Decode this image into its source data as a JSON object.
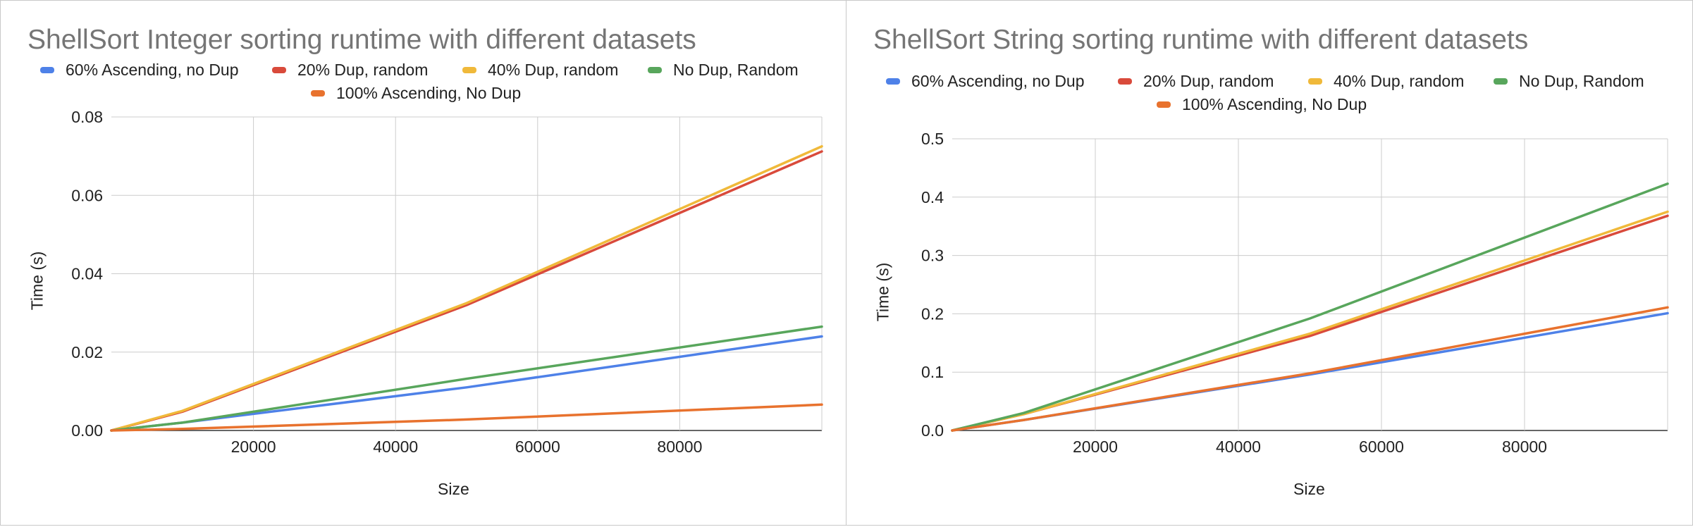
{
  "charts": [
    {
      "title": "ShellSort Integer sorting runtime with different datasets",
      "legend": [
        {
          "label": "60% Ascending, no Dup",
          "color": "#4e81e8"
        },
        {
          "label": "20% Dup, random",
          "color": "#d94a3b"
        },
        {
          "label": "40% Dup, random",
          "color": "#f0b93a"
        },
        {
          "label": "No Dup, Random",
          "color": "#58a65c"
        },
        {
          "label": "100% Ascending, No Dup",
          "color": "#e8722e"
        }
      ],
      "ylabel": "Time (s)",
      "xlabel": "Size"
    },
    {
      "title": "ShellSort String sorting runtime with different datasets",
      "legend": [
        {
          "label": "60% Ascending, no Dup",
          "color": "#4e81e8"
        },
        {
          "label": "20% Dup, random",
          "color": "#d94a3b"
        },
        {
          "label": "40% Dup, random",
          "color": "#f0b93a"
        },
        {
          "label": "No Dup, Random",
          "color": "#58a65c"
        },
        {
          "label": "100% Ascending, No Dup",
          "color": "#e8722e"
        }
      ],
      "ylabel": "Time (s)",
      "xlabel": "Size"
    }
  ],
  "chart_data": [
    {
      "type": "line",
      "title": "ShellSort Integer sorting runtime with different datasets",
      "xlabel": "Size",
      "ylabel": "Time (s)",
      "xlim": [
        0,
        100000
      ],
      "ylim": [
        0,
        0.08
      ],
      "xticks": [
        "20000",
        "40000",
        "60000",
        "80000"
      ],
      "xtick_values": [
        20000,
        40000,
        60000,
        80000
      ],
      "yticks": [
        "0.00",
        "0.02",
        "0.04",
        "0.06",
        "0.08"
      ],
      "ytick_values": [
        0,
        0.02,
        0.04,
        0.06,
        0.08
      ],
      "grid": true,
      "legend_position": "top",
      "x": [
        0,
        10000,
        50000,
        100000
      ],
      "series": [
        {
          "name": "60% Ascending, no Dup",
          "color": "#4e81e8",
          "values": [
            0,
            0.002,
            0.011,
            0.024
          ]
        },
        {
          "name": "20% Dup, random",
          "color": "#d94a3b",
          "values": [
            0,
            0.0048,
            0.032,
            0.0712
          ]
        },
        {
          "name": "40% Dup, random",
          "color": "#f0b93a",
          "values": [
            0,
            0.005,
            0.0325,
            0.0725
          ]
        },
        {
          "name": "No Dup, Random",
          "color": "#58a65c",
          "values": [
            0,
            0.002,
            0.0132,
            0.0265
          ]
        },
        {
          "name": "100% Ascending, No Dup",
          "color": "#e8722e",
          "values": [
            0,
            0.0004,
            0.0028,
            0.0066
          ]
        }
      ]
    },
    {
      "type": "line",
      "title": "ShellSort String sorting runtime with different datasets",
      "xlabel": "Size",
      "ylabel": "Time (s)",
      "xlim": [
        0,
        100000
      ],
      "ylim": [
        0,
        0.5
      ],
      "xticks": [
        "20000",
        "40000",
        "60000",
        "80000"
      ],
      "xtick_values": [
        20000,
        40000,
        60000,
        80000
      ],
      "yticks": [
        "0.0",
        "0.1",
        "0.2",
        "0.3",
        "0.4",
        "0.5"
      ],
      "ytick_values": [
        0,
        0.1,
        0.2,
        0.3,
        0.4,
        0.5
      ],
      "grid": true,
      "legend_position": "top",
      "x": [
        0,
        10000,
        50000,
        100000
      ],
      "series": [
        {
          "name": "60% Ascending, no Dup",
          "color": "#4e81e8",
          "values": [
            0,
            0.018,
            0.096,
            0.201
          ]
        },
        {
          "name": "20% Dup, random",
          "color": "#d94a3b",
          "values": [
            0,
            0.028,
            0.162,
            0.368
          ]
        },
        {
          "name": "40% Dup, random",
          "color": "#f0b93a",
          "values": [
            0,
            0.028,
            0.166,
            0.375
          ]
        },
        {
          "name": "No Dup, Random",
          "color": "#58a65c",
          "values": [
            0,
            0.03,
            0.192,
            0.423
          ]
        },
        {
          "name": "100% Ascending, No Dup",
          "color": "#e8722e",
          "values": [
            0,
            0.018,
            0.098,
            0.211
          ]
        }
      ]
    }
  ]
}
